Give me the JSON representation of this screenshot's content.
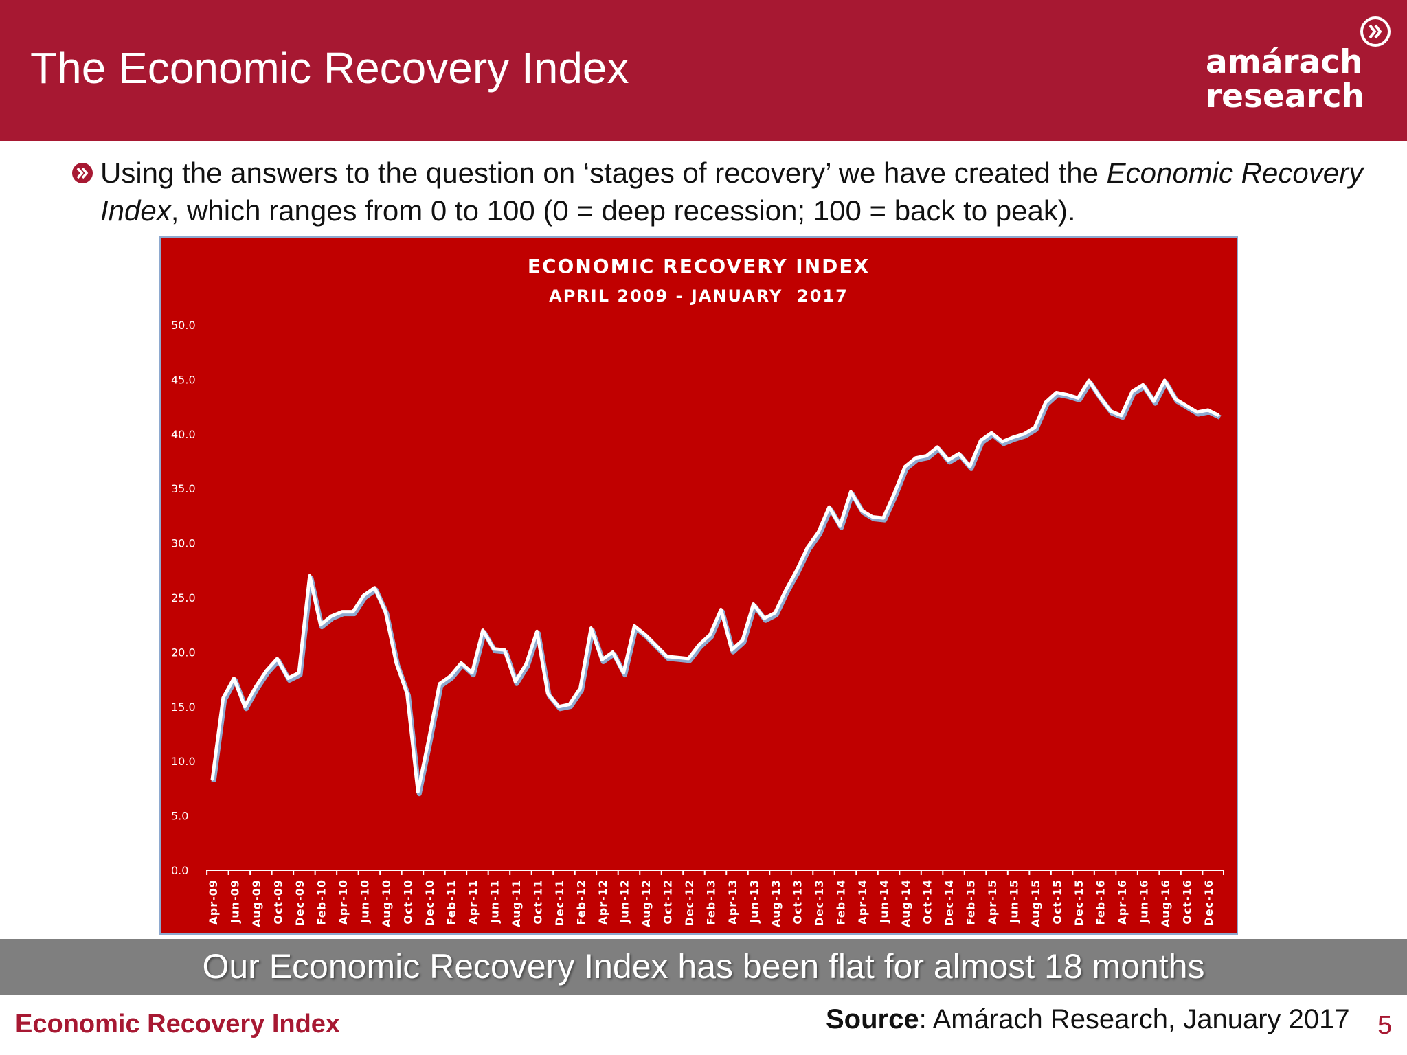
{
  "slide": {
    "title": "The Economic Recovery Index",
    "intro_part1": "Using the answers to the question on ‘stages of recovery’ we have created the ",
    "intro_italic1": "Economic Recovery Index",
    "intro_part2": ", which ranges from 0 to 100 (0 = deep recession; 100 = back to peak).",
    "takeaway": "Our Economic Recovery Index has been flat for almost 18 months",
    "footer_left": "Economic Recovery Index",
    "source_label": "Source",
    "source_text": ": Amárach Research, January 2017",
    "page_number": "5"
  },
  "logo": {
    "line1": "amárach",
    "line2": "research",
    "icon": "double-chevron-right-icon"
  },
  "colors": {
    "brand": "#a71832",
    "chart_bg": "#c00000",
    "line": "#ffffff",
    "line_shadow": "#8ea9cf",
    "takeaway_bg": "#7f7f7f"
  },
  "chart_data": {
    "type": "area",
    "title": "ECONOMIC RECOVERY INDEX",
    "subtitle": "APRIL 2009 - JANUARY  2017",
    "xlabel": "",
    "ylabel": "",
    "ylim": [
      0,
      50
    ],
    "yticks": [
      "0.0",
      "5.0",
      "10.0",
      "15.0",
      "20.0",
      "25.0",
      "30.0",
      "35.0",
      "40.0",
      "45.0",
      "50.0"
    ],
    "xtick_labels": [
      "Apr-09",
      "Jun-09",
      "Aug-09",
      "Oct-09",
      "Dec-09",
      "Feb-10",
      "Apr-10",
      "Jun-10",
      "Aug-10",
      "Oct-10",
      "Dec-10",
      "Feb-11",
      "Apr-11",
      "Jun-11",
      "Aug-11",
      "Oct-11",
      "Dec-11",
      "Feb-12",
      "Apr-12",
      "Jun-12",
      "Aug-12",
      "Oct-12",
      "Dec-12",
      "Feb-13",
      "Apr-13",
      "Jun-13",
      "Aug-13",
      "Oct-13",
      "Dec-13",
      "Feb-14",
      "Apr-14",
      "Jun-14",
      "Aug-14",
      "Oct-14",
      "Dec-14",
      "Feb-15",
      "Apr-15",
      "Jun-15",
      "Aug-15",
      "Oct-15",
      "Dec-15",
      "Feb-16",
      "Apr-16",
      "Jun-16",
      "Aug-16",
      "Oct-16",
      "Dec-16"
    ],
    "grid": false,
    "legend": "none",
    "series": [
      {
        "x": [
          "Apr-09",
          "May-09",
          "Jun-09",
          "Jul-09",
          "Aug-09",
          "Sep-09",
          "Oct-09",
          "Nov-09",
          "Dec-09",
          "Jan-10",
          "Feb-10",
          "Mar-10",
          "Apr-10",
          "May-10",
          "Jun-10",
          "Jul-10",
          "Aug-10",
          "Sep-10",
          "Oct-10",
          "Nov-10",
          "Dec-10",
          "Jan-11",
          "Feb-11",
          "Mar-11",
          "Apr-11",
          "May-11",
          "Jun-11",
          "Jul-11",
          "Aug-11",
          "Sep-11",
          "Oct-11",
          "Nov-11",
          "Dec-11",
          "Jan-12",
          "Feb-12",
          "Mar-12",
          "Apr-12",
          "May-12",
          "Jun-12",
          "Jul-12",
          "Aug-12",
          "Sep-12",
          "Oct-12",
          "Nov-12",
          "Dec-12",
          "Jan-13",
          "Feb-13",
          "Mar-13",
          "Apr-13",
          "May-13",
          "Jun-13",
          "Jul-13",
          "Aug-13",
          "Sep-13",
          "Oct-13",
          "Nov-13",
          "Dec-13",
          "Jan-14",
          "Feb-14",
          "Mar-14",
          "Apr-14",
          "May-14",
          "Jun-14",
          "Jul-14",
          "Aug-14",
          "Sep-14",
          "Oct-14",
          "Nov-14",
          "Dec-14",
          "Jan-15",
          "Feb-15",
          "Mar-15",
          "Apr-15",
          "May-15",
          "Jun-15",
          "Jul-15",
          "Aug-15",
          "Sep-15",
          "Oct-15",
          "Nov-15",
          "Dec-15",
          "Jan-16",
          "Feb-16",
          "Mar-16",
          "Apr-16",
          "May-16",
          "Jun-16",
          "Jul-16",
          "Aug-16",
          "Sep-16",
          "Oct-16",
          "Nov-16",
          "Dec-16",
          "Jan-17"
        ],
        "values": [
          8.3,
          15.8,
          17.6,
          15.0,
          16.8,
          18.3,
          19.4,
          17.6,
          18.1,
          27.0,
          22.5,
          23.3,
          23.7,
          23.7,
          25.2,
          25.9,
          23.7,
          19.0,
          16.2,
          7.2,
          12.0,
          17.1,
          17.8,
          19.0,
          18.1,
          22.0,
          20.3,
          20.2,
          17.3,
          18.9,
          21.9,
          16.2,
          15.0,
          15.2,
          16.7,
          22.2,
          19.3,
          20.0,
          18.1,
          22.4,
          21.6,
          20.6,
          19.6,
          19.5,
          19.4,
          20.7,
          21.6,
          23.9,
          20.2,
          21.1,
          24.4,
          23.1,
          23.6,
          25.7,
          27.5,
          29.6,
          31.0,
          33.3,
          31.6,
          34.7,
          33.0,
          32.4,
          32.3,
          34.5,
          37.0,
          37.8,
          38.0,
          38.8,
          37.6,
          38.2,
          37.0,
          39.4,
          40.1,
          39.3,
          39.7,
          40.0,
          40.6,
          42.9,
          43.8,
          43.6,
          43.3,
          44.9,
          43.4,
          42.1,
          41.7,
          43.9,
          44.5,
          43.0,
          44.9,
          43.2,
          42.6,
          42.0,
          42.2,
          41.7
        ]
      }
    ]
  }
}
